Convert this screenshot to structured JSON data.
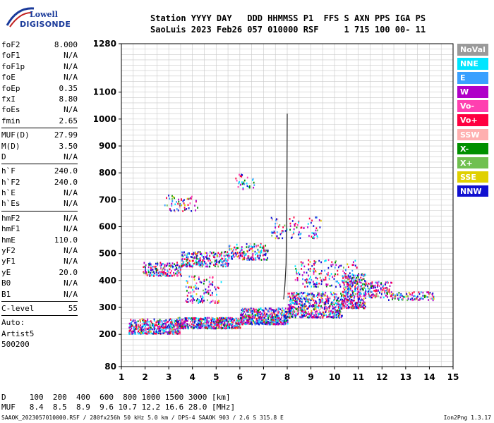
{
  "logo": {
    "line1": "Lowell",
    "line2": "DIGISONDE"
  },
  "header": {
    "line1": "Station YYYY DAY   DDD HHMMSS P1  FFS S AXN PPS IGA PS",
    "line2": "SaoLuis 2023 Feb26 057 010000 RSF     1 715 100 00- 11"
  },
  "params": {
    "g1": [
      [
        "foF2",
        "8.000"
      ],
      [
        "foF1",
        "N/A"
      ],
      [
        "foF1p",
        "N/A"
      ],
      [
        "foE",
        "N/A"
      ],
      [
        "foEp",
        "0.35"
      ],
      [
        "fxI",
        "8.80"
      ],
      [
        "foEs",
        "N/A"
      ],
      [
        "fmin",
        "2.65"
      ]
    ],
    "g2": [
      [
        "MUF(D)",
        "27.99"
      ],
      [
        "M(D)",
        "3.50"
      ],
      [
        "D",
        "N/A"
      ]
    ],
    "g3": [
      [
        "h`F",
        "240.0"
      ],
      [
        "h`F2",
        "240.0"
      ],
      [
        "h`E",
        "N/A"
      ],
      [
        "h`Es",
        "N/A"
      ]
    ],
    "g4": [
      [
        "hmF2",
        "N/A"
      ],
      [
        "hmF1",
        "N/A"
      ],
      [
        "hmE",
        "110.0"
      ],
      [
        "yF2",
        "N/A"
      ],
      [
        "yF1",
        "N/A"
      ],
      [
        "yE",
        "20.0"
      ],
      [
        "B0",
        "N/A"
      ],
      [
        "B1",
        "N/A"
      ]
    ],
    "g5": [
      [
        "C-level",
        "55"
      ]
    ],
    "auto": [
      "Auto:",
      "Artist5",
      "500200"
    ]
  },
  "legend": [
    {
      "label": "NoVal",
      "color": "#9a9a9a"
    },
    {
      "label": "NNE",
      "color": "#00e5ff"
    },
    {
      "label": "E",
      "color": "#3aa0ff"
    },
    {
      "label": "W",
      "color": "#b000c8"
    },
    {
      "label": "Vo-",
      "color": "#ff40b0"
    },
    {
      "label": "Vo+",
      "color": "#ff0040"
    },
    {
      "label": "SSW",
      "color": "#ffb0b0"
    },
    {
      "label": "X-",
      "color": "#009000"
    },
    {
      "label": "X+",
      "color": "#70c050"
    },
    {
      "label": "SSE",
      "color": "#e0d000"
    },
    {
      "label": "NNW",
      "color": "#1010d0"
    }
  ],
  "chart_data": {
    "type": "scatter",
    "xlim": [
      1,
      15
    ],
    "ylim": [
      80,
      1280
    ],
    "x_ticks": [
      1,
      2,
      3,
      4,
      5,
      6,
      7,
      8,
      9,
      10,
      11,
      12,
      13,
      14,
      15
    ],
    "y_ticks": [
      80,
      200,
      300,
      400,
      500,
      600,
      700,
      800,
      900,
      1000,
      1100,
      1280
    ],
    "grid": true,
    "trace_line": [
      [
        7.85,
        330
      ],
      [
        7.9,
        380
      ],
      [
        7.95,
        460
      ],
      [
        7.97,
        600
      ],
      [
        7.99,
        800
      ],
      [
        8.0,
        1020
      ]
    ],
    "clusters": [
      {
        "xr": [
          1.3,
          3.5
        ],
        "yr": [
          205,
          260
        ],
        "n": 420
      },
      {
        "xr": [
          3.3,
          6.0
        ],
        "yr": [
          225,
          265
        ],
        "n": 520
      },
      {
        "xr": [
          6.0,
          8.0
        ],
        "yr": [
          240,
          300
        ],
        "n": 500
      },
      {
        "xr": [
          8.0,
          10.3
        ],
        "yr": [
          265,
          360
        ],
        "n": 560
      },
      {
        "xr": [
          10.3,
          11.3
        ],
        "yr": [
          300,
          430
        ],
        "n": 360
      },
      {
        "xr": [
          11.3,
          12.4
        ],
        "yr": [
          340,
          400
        ],
        "n": 120
      },
      {
        "xr": [
          12.2,
          14.2
        ],
        "yr": [
          330,
          360
        ],
        "n": 90
      },
      {
        "xr": [
          1.9,
          3.5
        ],
        "yr": [
          420,
          470
        ],
        "n": 160
      },
      {
        "xr": [
          3.5,
          5.5
        ],
        "yr": [
          455,
          510
        ],
        "n": 240
      },
      {
        "xr": [
          5.5,
          7.2
        ],
        "yr": [
          480,
          540
        ],
        "n": 160
      },
      {
        "xr": [
          7.3,
          9.4
        ],
        "yr": [
          560,
          640
        ],
        "n": 90
      },
      {
        "xr": [
          2.8,
          4.2
        ],
        "yr": [
          660,
          720
        ],
        "n": 60
      },
      {
        "xr": [
          5.8,
          6.6
        ],
        "yr": [
          740,
          800
        ],
        "n": 30
      },
      {
        "xr": [
          3.7,
          5.2
        ],
        "yr": [
          320,
          420
        ],
        "n": 110
      },
      {
        "xr": [
          8.3,
          11.0
        ],
        "yr": [
          380,
          480
        ],
        "n": 160
      }
    ]
  },
  "bottom": {
    "line1": "D     100  200  400  600  800 1000 1500 3000 [km]",
    "line2": "MUF   8.4  8.5  8.9  9.6 10.7 12.2 16.6 28.0 [MHz]"
  },
  "footer": {
    "left": "SAAOK_2023057010000.RSF / 280fx256h 50 kHz 5.0 km / DPS-4 SAAOK 903 / 2.6 S 315.8 E",
    "right": "Ion2Png 1.3.17"
  }
}
